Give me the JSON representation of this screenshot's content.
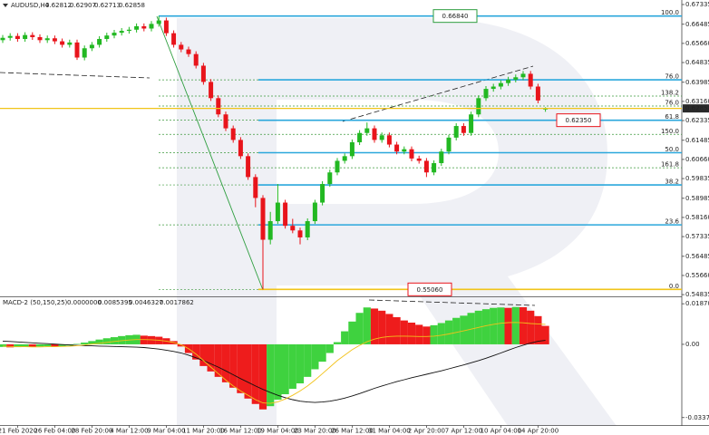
{
  "chart_data": [
    {
      "type": "candlestick",
      "symbol": "AUDUSD,H4",
      "categories": [
        null,
        null,
        "21 Feb 2020",
        null,
        null,
        null,
        null,
        "26 Feb 04:00",
        null,
        null,
        null,
        null,
        "28 Feb 20:00",
        null,
        null,
        null,
        null,
        "4 Mar 12:00",
        null,
        null,
        null,
        null,
        "9 Mar 04:00",
        null,
        null,
        null,
        null,
        "11 Mar 20:00",
        null,
        null,
        null,
        null,
        "16 Mar 12:00",
        null,
        null,
        null,
        null,
        "19 Mar 04:00",
        null,
        null,
        null,
        null,
        "23 Mar 20:00",
        null,
        null,
        null,
        null,
        "26 Mar 12:00",
        null,
        null,
        null,
        null,
        "31 Mar 04:00",
        null,
        null,
        null,
        null,
        "2 Apr 20:00",
        null,
        null,
        null,
        null,
        "7 Apr 12:00",
        null,
        null,
        null,
        null,
        "10 Apr 04:00",
        null,
        null,
        null,
        null,
        "14 Apr 20:00",
        null
      ],
      "open": [
        0.658,
        0.659,
        0.6598,
        0.6585,
        0.6602,
        0.6593,
        0.658,
        0.6588,
        0.6575,
        0.656,
        0.657,
        0.6505,
        0.6545,
        0.656,
        0.6585,
        0.66,
        0.6612,
        0.662,
        0.6625,
        0.664,
        0.663,
        0.665,
        0.6665,
        0.661,
        0.656,
        0.654,
        0.652,
        0.647,
        0.64,
        0.633,
        0.626,
        0.62,
        0.615,
        0.608,
        0.599,
        0.59,
        0.572,
        0.58,
        0.588,
        0.578,
        0.576,
        0.573,
        0.58,
        0.588,
        0.596,
        0.601,
        0.606,
        0.608,
        0.614,
        0.618,
        0.62,
        0.615,
        0.617,
        0.613,
        0.61,
        0.611,
        0.607,
        0.606,
        0.601,
        0.605,
        0.61,
        0.616,
        0.621,
        0.618,
        0.626,
        0.633,
        0.637,
        0.638,
        0.6395,
        0.641,
        0.642,
        0.6435,
        0.638,
        0.62812
      ],
      "high": [
        0.6602,
        0.661,
        0.661,
        0.6614,
        0.6614,
        0.6605,
        0.66,
        0.66,
        0.6587,
        0.6582,
        0.6582,
        0.6557,
        0.6572,
        0.6597,
        0.6612,
        0.6624,
        0.6632,
        0.6637,
        0.6652,
        0.6652,
        0.6662,
        0.6684,
        0.6677,
        0.6622,
        0.6572,
        0.6552,
        0.6532,
        0.6482,
        0.6412,
        0.6342,
        0.6272,
        0.6212,
        0.6162,
        0.6092,
        0.6002,
        0.5912,
        0.584,
        0.596,
        0.5892,
        0.581,
        0.5772,
        0.5812,
        0.5892,
        0.5972,
        0.6022,
        0.6072,
        0.6092,
        0.6152,
        0.6192,
        0.6225,
        0.6212,
        0.6182,
        0.6182,
        0.6142,
        0.6122,
        0.6122,
        0.6082,
        0.6072,
        0.6062,
        0.6112,
        0.6172,
        0.6222,
        0.6222,
        0.6272,
        0.6342,
        0.6382,
        0.6392,
        0.6407,
        0.6422,
        0.6432,
        0.6447,
        0.6447,
        0.6392,
        0.62907
      ],
      "low": [
        0.6568,
        0.6578,
        0.6573,
        0.6573,
        0.6581,
        0.6568,
        0.6568,
        0.6563,
        0.6548,
        0.6548,
        0.6495,
        0.6493,
        0.6533,
        0.6548,
        0.6573,
        0.6588,
        0.66,
        0.6608,
        0.6613,
        0.6618,
        0.6618,
        0.6638,
        0.6598,
        0.6548,
        0.6528,
        0.6508,
        0.6458,
        0.6388,
        0.6318,
        0.6248,
        0.6188,
        0.6138,
        0.6068,
        0.5978,
        0.586,
        0.5506,
        0.57,
        0.5788,
        0.5768,
        0.5748,
        0.57,
        0.5718,
        0.5788,
        0.5868,
        0.5948,
        0.5998,
        0.6048,
        0.6068,
        0.6128,
        0.6168,
        0.6138,
        0.6138,
        0.6118,
        0.6088,
        0.6088,
        0.6058,
        0.6048,
        0.599,
        0.5998,
        0.6038,
        0.6088,
        0.6148,
        0.6168,
        0.6168,
        0.6248,
        0.6318,
        0.6358,
        0.6368,
        0.6383,
        0.6398,
        0.6408,
        0.6368,
        0.6308,
        0.62713
      ],
      "close": [
        0.659,
        0.6598,
        0.6585,
        0.6602,
        0.6593,
        0.658,
        0.6588,
        0.6575,
        0.656,
        0.657,
        0.6505,
        0.6545,
        0.656,
        0.6585,
        0.66,
        0.6612,
        0.662,
        0.6625,
        0.664,
        0.663,
        0.665,
        0.6665,
        0.661,
        0.656,
        0.654,
        0.652,
        0.647,
        0.64,
        0.633,
        0.626,
        0.62,
        0.615,
        0.608,
        0.599,
        0.59,
        0.572,
        0.58,
        0.588,
        0.578,
        0.576,
        0.573,
        0.58,
        0.588,
        0.596,
        0.601,
        0.606,
        0.608,
        0.614,
        0.618,
        0.62,
        0.615,
        0.617,
        0.613,
        0.61,
        0.611,
        0.607,
        0.606,
        0.601,
        0.605,
        0.61,
        0.616,
        0.621,
        0.618,
        0.626,
        0.633,
        0.637,
        0.638,
        0.6395,
        0.641,
        0.642,
        0.6435,
        0.638,
        0.632,
        0.62858
      ],
      "up_color": "#22b822",
      "down_color": "#e8141b",
      "price_line_color": "#f0c419",
      "ylim": [
        0.5476,
        0.6753
      ],
      "yticks": [
        0.67335,
        0.66485,
        {
          "value": 0.6566,
          "label": "0.65660"
        },
        0.64835,
        0.63985,
        {
          "value": 0.6316,
          "label": "0.63160"
        },
        0.62335,
        0.61485,
        {
          "value": 0.6066,
          "label": "0.60660"
        },
        0.59835,
        0.58985,
        {
          "value": 0.5816,
          "label": "0.58160"
        },
        0.57335,
        0.56485,
        {
          "value": 0.5566,
          "label": "0.55660"
        },
        0.54835
      ],
      "levels": [
        {
          "label": "100.0",
          "value": 0.6684,
          "solid": true,
          "color": "#2aa7dc"
        },
        {
          "label": "76.0",
          "value": 0.6409,
          "solid": true,
          "color": "#2aa7dc"
        },
        {
          "label": "138.2",
          "value": 0.6339,
          "solid": false,
          "color": "#3e9a3e"
        },
        {
          "label": "76.0",
          "value": 0.6296,
          "solid": false,
          "color": "#e07b00"
        },
        {
          "label": "61.8",
          "value": 0.6235,
          "solid": true,
          "color": "#2aa7dc"
        },
        {
          "label": "150.0",
          "value": 0.6174,
          "solid": false,
          "color": "#3e9a3e"
        },
        {
          "label": "50.0",
          "value": 0.6095,
          "solid": true,
          "color": "#2aa7dc"
        },
        {
          "label": "161.8",
          "value": 0.603,
          "solid": false,
          "color": "#3e9a3e"
        },
        {
          "label": "38.2",
          "value": 0.5956,
          "solid": true,
          "color": "#2aa7dc"
        },
        {
          "label": "23.6",
          "value": 0.5784,
          "solid": true,
          "color": "#2aa7dc"
        },
        {
          "label": "0.0",
          "value": 0.5506,
          "solid": true,
          "color": "#f0c419"
        }
      ],
      "price_labels": [
        {
          "value": 0.6684,
          "label": "0.66840",
          "color": "#2e9e3f"
        },
        {
          "value": 0.6235,
          "label": "0.62350",
          "color": "#e8141b"
        },
        {
          "value": 0.5506,
          "label": "0.55060",
          "color": "#e8141b"
        }
      ]
    },
    {
      "type": "macd",
      "title": "MACD-2 (50,150,25)",
      "readings": [
        {
          "value": 0,
          "label": "0.0000000"
        },
        0.0085395,
        0.0046327,
        0.0017862
      ],
      "values": [
        -0.0012,
        -0.0014,
        -0.0013,
        -0.0011,
        -0.0012,
        -0.001,
        -0.0009,
        -0.0011,
        -0.0008,
        -0.0006,
        0.0002,
        0.0008,
        0.0015,
        0.0022,
        0.0028,
        0.0033,
        0.0038,
        0.0042,
        0.0044,
        0.004,
        0.0038,
        0.0035,
        0.0028,
        0.0015,
        -0.001,
        -0.004,
        -0.007,
        -0.01,
        -0.0125,
        -0.015,
        -0.0175,
        -0.02,
        -0.0225,
        -0.025,
        -0.0275,
        -0.03,
        -0.0285,
        -0.0255,
        -0.023,
        -0.0205,
        -0.018,
        -0.015,
        -0.0115,
        -0.008,
        -0.004,
        0.001,
        0.006,
        0.0105,
        0.0145,
        0.017,
        0.0165,
        0.0155,
        0.014,
        0.0125,
        0.011,
        0.01,
        0.009,
        0.0082,
        0.0088,
        0.0098,
        0.011,
        0.0122,
        0.0132,
        0.0145,
        0.0155,
        0.0162,
        0.0168,
        0.017,
        0.0168,
        0.0172,
        0.0171,
        0.0155,
        0.013,
        0.0085
      ],
      "up_color": "#3fd23f",
      "down_color": "#ee1c1c",
      "lines": [
        {
          "color": "#111111",
          "values": [
            0.0015,
            0.0013,
            0.0011,
            0.0009,
            0.0007,
            0.0005,
            0.0003,
            0.0001,
            -0.0001,
            -0.0003,
            -0.0005,
            -0.0006,
            -0.0007,
            -0.0008,
            -0.0009,
            -0.001,
            -0.0011,
            -0.0012,
            -0.0013,
            -0.0015,
            -0.0018,
            -0.0022,
            -0.0027,
            -0.0033,
            -0.004,
            -0.005,
            -0.0062,
            -0.0075,
            -0.009,
            -0.0105,
            -0.0122,
            -0.014,
            -0.0158,
            -0.0175,
            -0.0192,
            -0.0208,
            -0.0222,
            -0.0235,
            -0.0246,
            -0.0255,
            -0.0262,
            -0.0266,
            -0.0268,
            -0.0266,
            -0.0262,
            -0.0256,
            -0.0248,
            -0.0238,
            -0.0227,
            -0.0215,
            -0.0203,
            -0.0192,
            -0.0182,
            -0.0172,
            -0.0163,
            -0.0154,
            -0.0146,
            -0.0138,
            -0.013,
            -0.0122,
            -0.0113,
            -0.0104,
            -0.0095,
            -0.0085,
            -0.0075,
            -0.0064,
            -0.0052,
            -0.004,
            -0.0027,
            -0.0015,
            -0.0004,
            0.0006,
            0.0014,
            0.0018
          ]
        },
        {
          "color": "#f2c21a",
          "values": [
            -0.0008,
            -0.001,
            -0.0011,
            -0.0011,
            -0.0012,
            -0.0012,
            -0.0011,
            -0.0011,
            -0.001,
            -0.0009,
            -0.0006,
            -0.0003,
            0.0001,
            0.0005,
            0.0009,
            0.0013,
            0.0017,
            0.002,
            0.0022,
            0.0022,
            0.0021,
            0.0019,
            0.0015,
            0.0008,
            -0.0002,
            -0.002,
            -0.0045,
            -0.0075,
            -0.0105,
            -0.0135,
            -0.0165,
            -0.0192,
            -0.0215,
            -0.0235,
            -0.0255,
            -0.027,
            -0.0272,
            -0.0265,
            -0.0252,
            -0.0235,
            -0.0215,
            -0.0192,
            -0.0165,
            -0.0135,
            -0.0105,
            -0.0075,
            -0.005,
            -0.0025,
            -0.0005,
            0.0012,
            0.0024,
            0.0032,
            0.0036,
            0.0038,
            0.0038,
            0.0037,
            0.0036,
            0.0036,
            0.0038,
            0.0042,
            0.0048,
            0.0055,
            0.0062,
            0.007,
            0.0078,
            0.0086,
            0.0092,
            0.0097,
            0.01,
            0.0101,
            0.0099,
            0.0096,
            0.0094,
            0.0092
          ]
        }
      ],
      "ylim": [
        -0.0372,
        0.0217
      ],
      "yticks": [
        0.0187035,
        {
          "value": 0,
          "label": "0.00"
        },
        -0.033756
      ]
    }
  ]
}
